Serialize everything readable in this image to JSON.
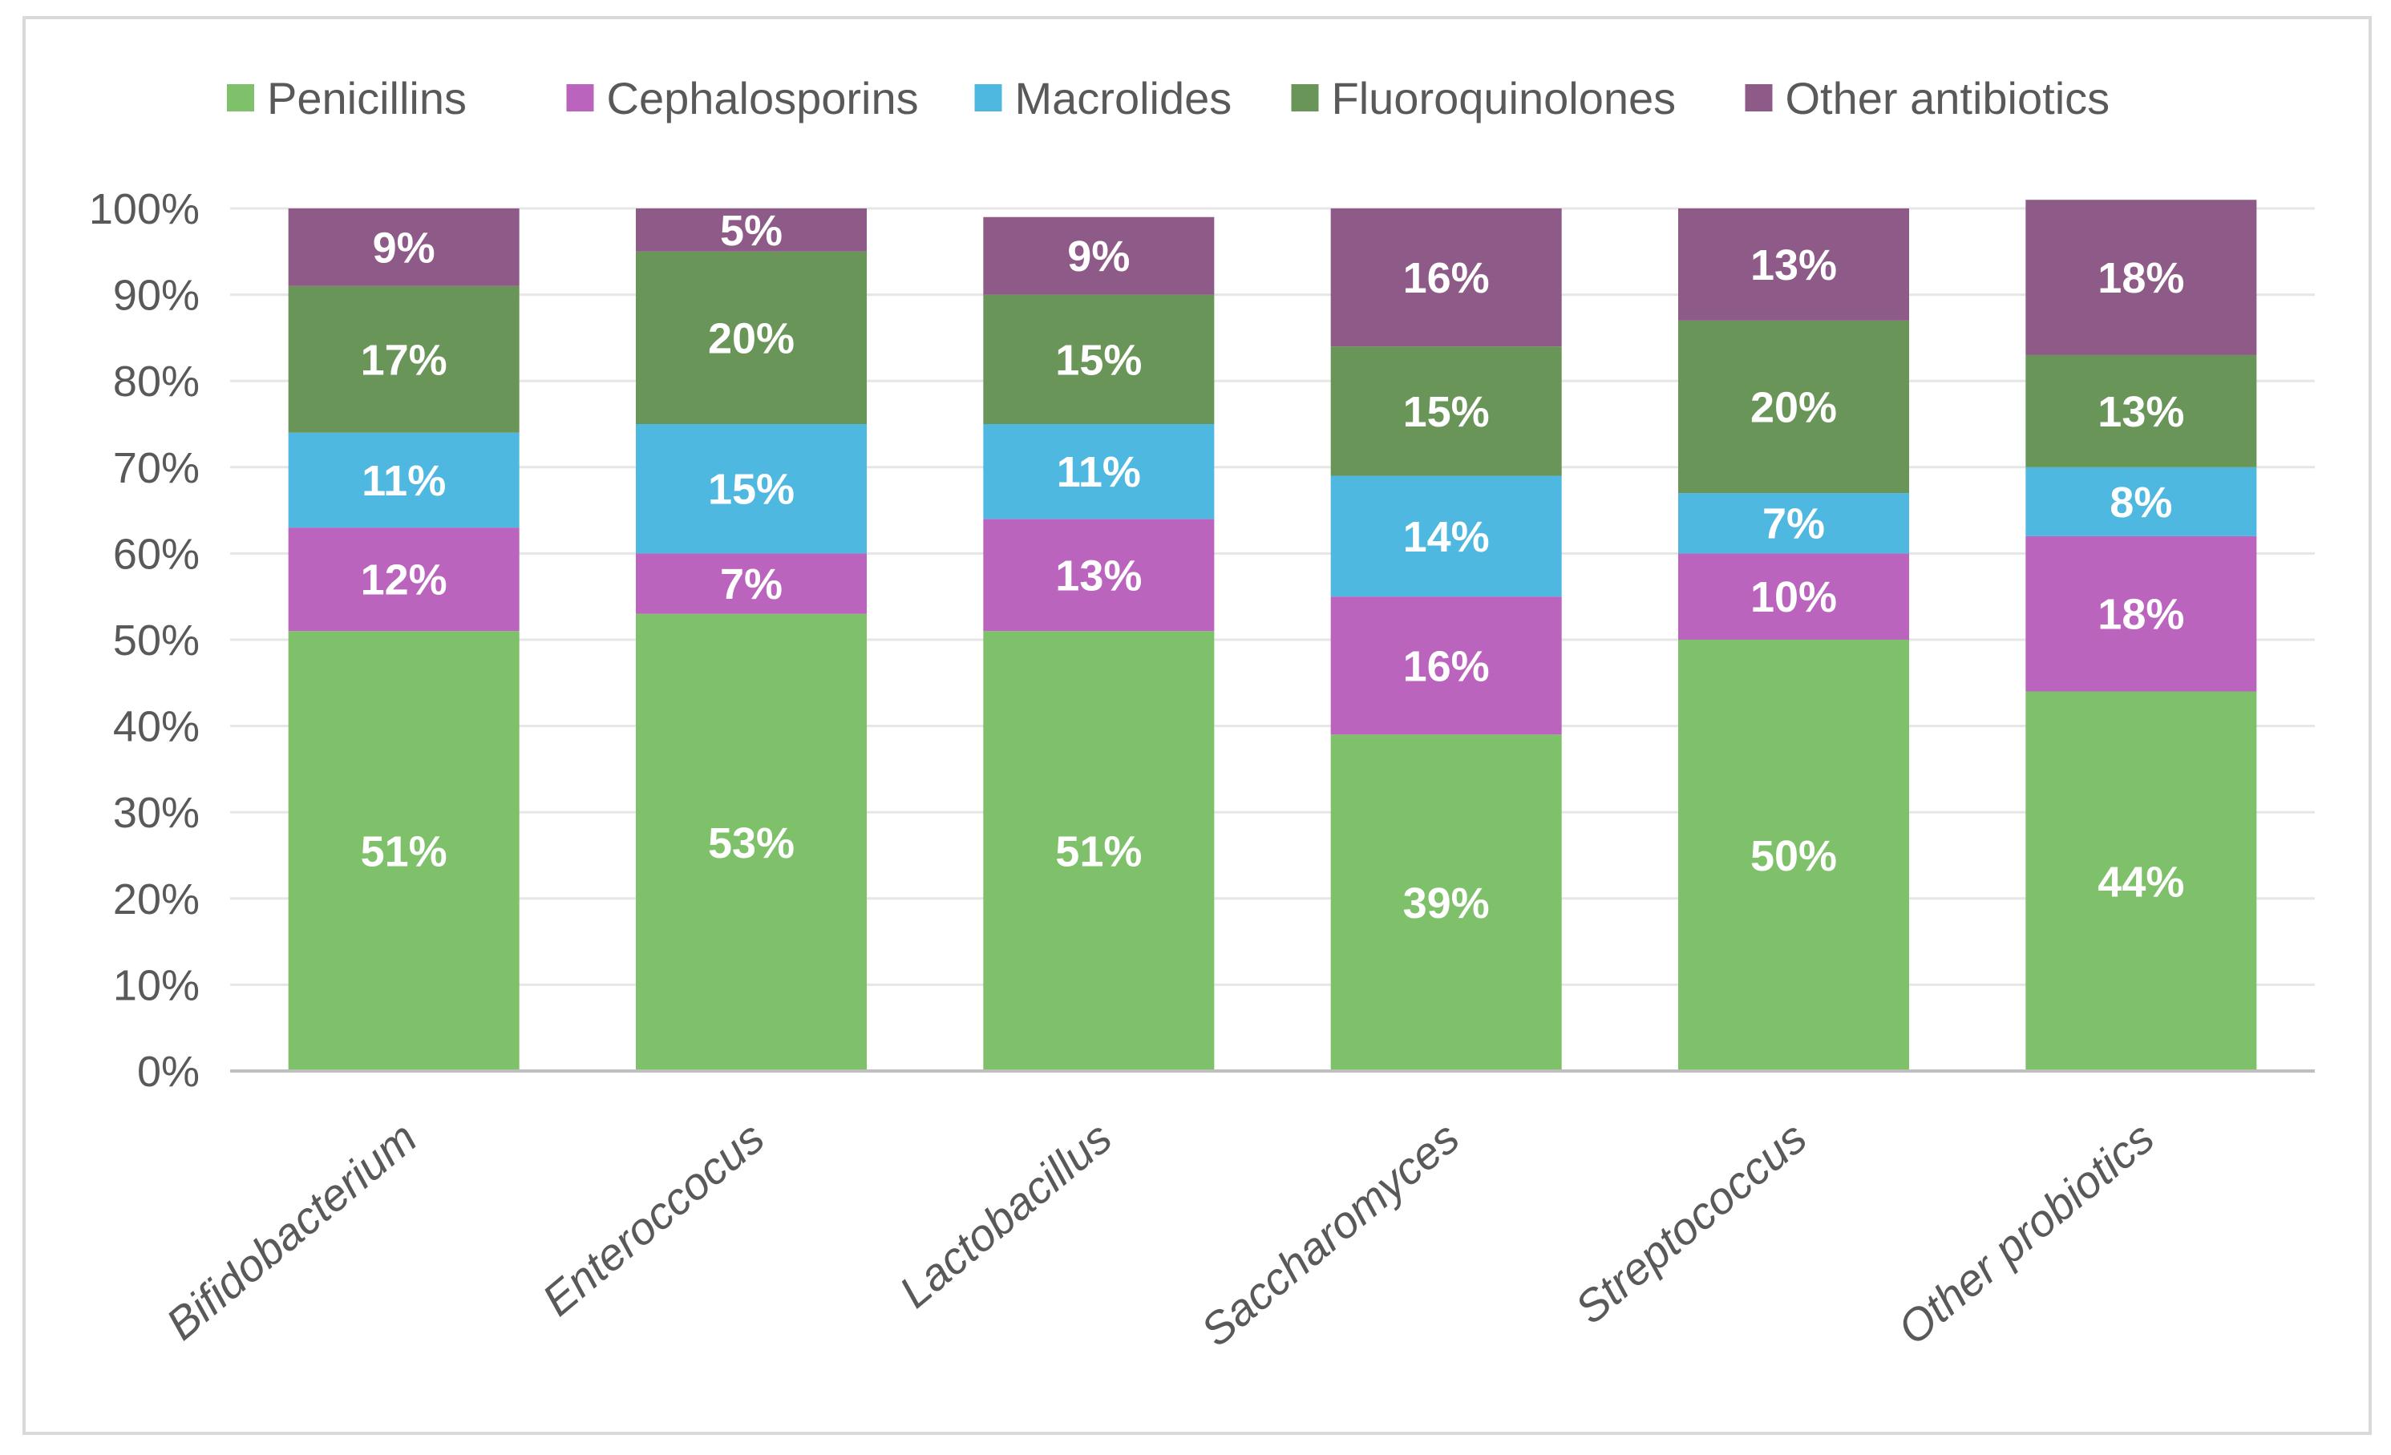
{
  "chart_data": {
    "type": "bar",
    "stacked": true,
    "title": "",
    "xlabel": "",
    "ylabel": "",
    "ylim": [
      0,
      100
    ],
    "y_ticks": [
      "0%",
      "10%",
      "20%",
      "30%",
      "40%",
      "50%",
      "60%",
      "70%",
      "80%",
      "90%",
      "100%"
    ],
    "grid": true,
    "legend_position": "top",
    "categories": [
      "Bifidobacterium",
      "Enteroccocus",
      "Lactobacillus",
      "Saccharomyces",
      "Streptococcus",
      "Other probiotics"
    ],
    "series": [
      {
        "name": "Penicillins",
        "color": "#7fc06b",
        "values": [
          51,
          53,
          51,
          39,
          50,
          44
        ],
        "labels": [
          "51%",
          "53%",
          "51%",
          "39%",
          "50%",
          "44%"
        ]
      },
      {
        "name": "Cephalosporins",
        "color": "#bb64be",
        "values": [
          12,
          7,
          13,
          16,
          10,
          18
        ],
        "labels": [
          "12%",
          "7%",
          "13%",
          "16%",
          "10%",
          "18%"
        ]
      },
      {
        "name": "Macrolides",
        "color": "#4fb8e0",
        "values": [
          11,
          15,
          11,
          14,
          7,
          8
        ],
        "labels": [
          "11%",
          "15%",
          "11%",
          "14%",
          "7%",
          "8%"
        ]
      },
      {
        "name": "Fluoroquinolones",
        "color": "#6a9559",
        "values": [
          17,
          20,
          15,
          15,
          20,
          13
        ],
        "labels": [
          "17%",
          "20%",
          "15%",
          "15%",
          "20%",
          "13%"
        ]
      },
      {
        "name": "Other antibiotics",
        "color": "#8e5a87",
        "values": [
          9,
          5,
          9,
          16,
          13,
          18
        ],
        "labels": [
          "9%",
          "5%",
          "9%",
          "16%",
          "13%",
          "18%"
        ]
      }
    ]
  },
  "colors": {
    "axis": "#bfbfbf",
    "grid": "#e6e6e6",
    "frame": "#d9d9d9",
    "text": "#595959"
  }
}
